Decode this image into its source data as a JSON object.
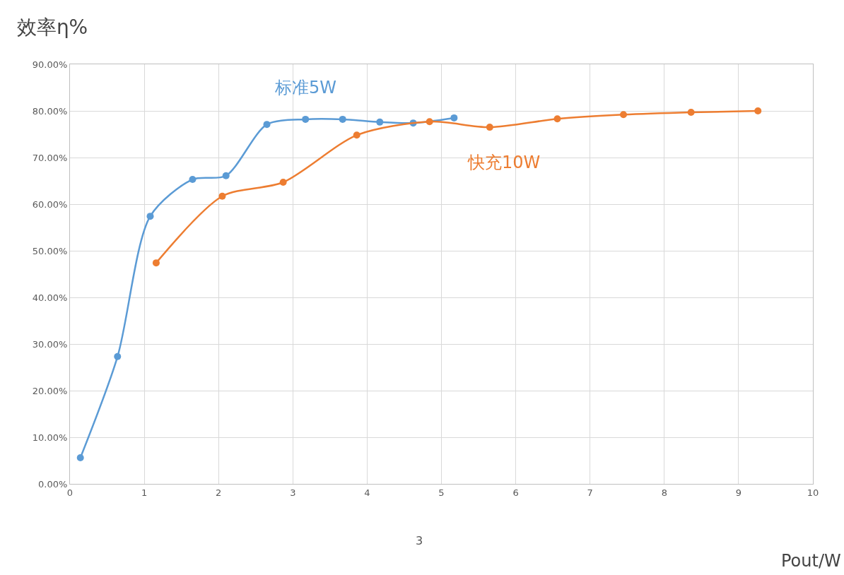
{
  "chart_data": {
    "type": "line",
    "title": "效率η%",
    "xlabel": "Pout/W",
    "annotations": [
      "3"
    ],
    "xlim": [
      0,
      10
    ],
    "xticks": [
      0,
      1,
      2,
      3,
      4,
      5,
      6,
      7,
      8,
      9,
      10
    ],
    "ylim": [
      0,
      90
    ],
    "yticks": [
      {
        "value": 0,
        "label": "0.00%"
      },
      {
        "value": 10,
        "label": "10.00%"
      },
      {
        "value": 20,
        "label": "20.00%"
      },
      {
        "value": 30,
        "label": "30.00%"
      },
      {
        "value": 40,
        "label": "40.00%"
      },
      {
        "value": 50,
        "label": "50.00%"
      },
      {
        "value": 60,
        "label": "60.00%"
      },
      {
        "value": 70,
        "label": "70.00%"
      },
      {
        "value": 80,
        "label": "80.00%"
      },
      {
        "value": 90,
        "label": "90.00%"
      }
    ],
    "grid": true,
    "legend": false,
    "marker": "circle",
    "line_style": "solid",
    "series": [
      {
        "name": "标准5W",
        "color": "#5b9bd5",
        "x": [
          0.14,
          0.64,
          1.08,
          1.65,
          2.1,
          2.65,
          3.17,
          3.67,
          4.17,
          4.62,
          5.17
        ],
        "values": [
          5.6,
          27.3,
          57.4,
          65.3,
          66.1,
          77.1,
          78.2,
          78.2,
          77.6,
          77.4,
          78.5
        ]
      },
      {
        "name": "快充10W",
        "color": "#ed7d31",
        "x": [
          1.16,
          2.05,
          2.87,
          3.86,
          4.84,
          5.65,
          6.56,
          7.45,
          8.36,
          9.26
        ],
        "values": [
          47.4,
          61.7,
          64.7,
          74.8,
          77.7,
          76.5,
          78.3,
          79.2,
          79.7,
          80.0
        ]
      }
    ]
  }
}
